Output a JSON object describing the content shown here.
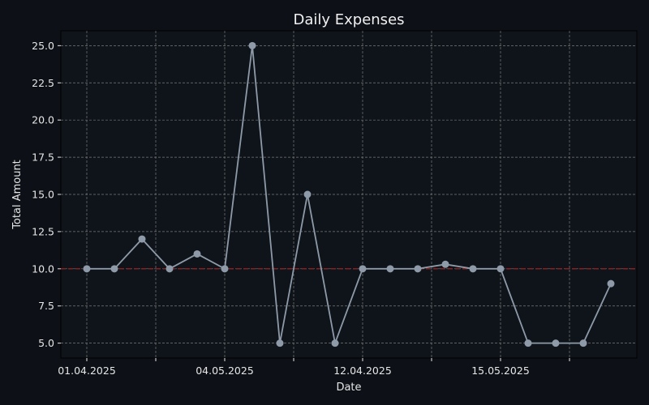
{
  "chart_data": {
    "type": "line",
    "title": "Daily Expenses",
    "xlabel": "Date",
    "ylabel": "Total Amount",
    "ylim": [
      4.0,
      26.0
    ],
    "y_ticks": [
      "5.0",
      "7.5",
      "10.0",
      "12.5",
      "15.0",
      "17.5",
      "20.0",
      "22.5",
      "25.0"
    ],
    "x_tick_labels": [
      "01.04.2025",
      "",
      "04.05.2025",
      "",
      "12.04.2025",
      "",
      "15.05.2025",
      ""
    ],
    "x_tick_indices": [
      0,
      2.5,
      5,
      7.5,
      10,
      12.5,
      15,
      17.5
    ],
    "values": [
      10,
      10,
      12,
      10,
      11,
      10,
      25,
      5,
      15,
      5,
      10,
      10,
      10,
      10.3,
      10,
      10,
      5,
      5,
      5,
      9
    ],
    "reference_line": {
      "value": 10,
      "style": "dashed"
    },
    "grid": true,
    "colors": {
      "background": "#0d1117",
      "plot_background": "#0f141a",
      "line": "#8e9aa8",
      "reference": "#b22222",
      "grid": "#7a7a7a",
      "text": "#e6e6e6"
    }
  }
}
